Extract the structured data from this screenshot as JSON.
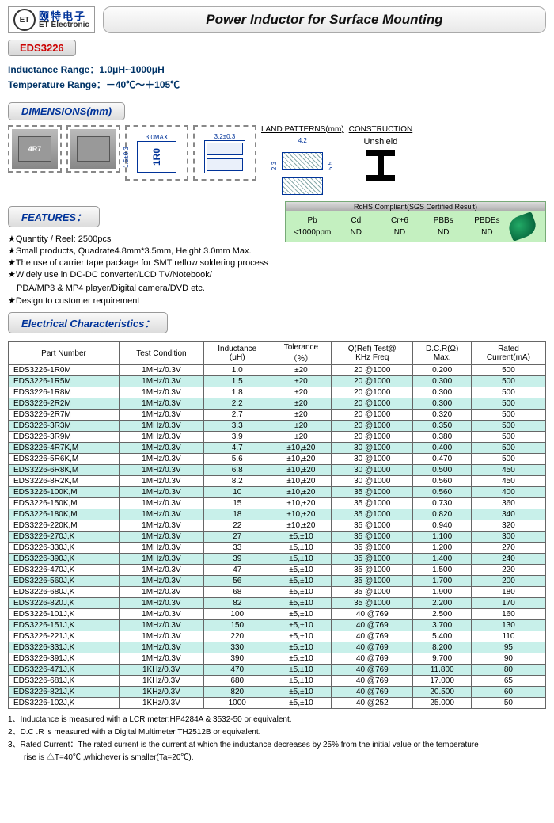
{
  "logo": {
    "cn": "颐特电子",
    "en": "ET Electronic",
    "glyph": "ET"
  },
  "title": "Power Inductor for Surface Mounting",
  "model": "EDS3226",
  "specs": {
    "inductance_label": "Inductance Range：",
    "inductance_value": "1.0μH~1000μH",
    "temperature_label": "Temperature Range：",
    "temperature_value": "－40℃～＋105℃"
  },
  "sections": {
    "dimensions": "DIMENSIONS(mm)",
    "features": "FEATURES：",
    "electrical": "Electrical Characteristics："
  },
  "dimensions": {
    "photo_label": "4R7",
    "pkg_text": "1R0",
    "width_top": "3.0MAX",
    "height_side": "1.5±0.3",
    "fp_width": "3.2±0.3",
    "land_title": "LAND PATTERNS(mm)",
    "land_w": "4.2",
    "land_h1": "2.3",
    "land_h2": "5.5",
    "constr_title": "CONSTRUCTION",
    "constr_value": "Unshield"
  },
  "features": [
    "★Quantity / Reel: 2500pcs",
    "★Small products, Quadrate4.8mm*3.5mm, Height 3.0mm Max.",
    "★The use of carrier tape package for SMT reflow soldering process",
    "★Widely use in DC-DC converter/LCD TV/Notebook/",
    "　PDA/MP3 & MP4 player/Digital camera/DVD etc.",
    "★Design to customer requirement"
  ],
  "rohs": {
    "title": "RoHS Compliant(SGS Certified Result)",
    "headers": [
      "Pb",
      "Cd",
      "Cr+6",
      "PBBs",
      "PBDEs"
    ],
    "values": [
      "<1000ppm",
      "ND",
      "ND",
      "ND",
      "ND"
    ]
  },
  "table": {
    "columns": [
      "Part Number",
      "Test Condition",
      "Inductance\n(μH)",
      "Tolerance\n（％）",
      "Q(Ref) Test@\nKHz Freq",
      "D.C.R(Ω)\nMax.",
      "Rated\nCurrent(mA)"
    ],
    "row_alt_color": "#c8f0ea",
    "rows": [
      [
        "EDS3226-1R0M",
        "1MHz/0.3V",
        "1.0",
        "±20",
        "20  @1000",
        "0.200",
        "500"
      ],
      [
        "EDS3226-1R5M",
        "1MHz/0.3V",
        "1.5",
        "±20",
        "20  @1000",
        "0.300",
        "500"
      ],
      [
        "EDS3226-1R8M",
        "1MHz/0.3V",
        "1.8",
        "±20",
        "20  @1000",
        "0.300",
        "500"
      ],
      [
        "EDS3226-2R2M",
        "1MHz/0.3V",
        "2.2",
        "±20",
        "20  @1000",
        "0.300",
        "500"
      ],
      [
        "EDS3226-2R7M",
        "1MHz/0.3V",
        "2.7",
        "±20",
        "20  @1000",
        "0.320",
        "500"
      ],
      [
        "EDS3226-3R3M",
        "1MHz/0.3V",
        "3.3",
        "±20",
        "20  @1000",
        "0.350",
        "500"
      ],
      [
        "EDS3226-3R9M",
        "1MHz/0.3V",
        "3.9",
        "±20",
        "20  @1000",
        "0.380",
        "500"
      ],
      [
        "EDS3226-4R7K,M",
        "1MHz/0.3V",
        "4.7",
        "±10,±20",
        "30  @1000",
        "0.400",
        "500"
      ],
      [
        "EDS3226-5R6K,M",
        "1MHz/0.3V",
        "5.6",
        "±10,±20",
        "30  @1000",
        "0.470",
        "500"
      ],
      [
        "EDS3226-6R8K,M",
        "1MHz/0.3V",
        "6.8",
        "±10,±20",
        "30  @1000",
        "0.500",
        "450"
      ],
      [
        "EDS3226-8R2K,M",
        "1MHz/0.3V",
        "8.2",
        "±10,±20",
        "30  @1000",
        "0.560",
        "450"
      ],
      [
        "EDS3226-100K,M",
        "1MHz/0.3V",
        "10",
        "±10,±20",
        "35  @1000",
        "0.560",
        "400"
      ],
      [
        "EDS3226-150K,M",
        "1MHz/0.3V",
        "15",
        "±10,±20",
        "35  @1000",
        "0.730",
        "360"
      ],
      [
        "EDS3226-180K,M",
        "1MHz/0.3V",
        "18",
        "±10,±20",
        "35  @1000",
        "0.820",
        "340"
      ],
      [
        "EDS3226-220K,M",
        "1MHz/0.3V",
        "22",
        "±10,±20",
        "35  @1000",
        "0.940",
        "320"
      ],
      [
        "EDS3226-270J,K",
        "1MHz/0.3V",
        "27",
        "±5,±10",
        "35  @1000",
        "1.100",
        "300"
      ],
      [
        "EDS3226-330J,K",
        "1MHz/0.3V",
        "33",
        "±5,±10",
        "35  @1000",
        "1.200",
        "270"
      ],
      [
        "EDS3226-390J,K",
        "1MHz/0.3V",
        "39",
        "±5,±10",
        "35  @1000",
        "1.400",
        "240"
      ],
      [
        "EDS3226-470J,K",
        "1MHz/0.3V",
        "47",
        "±5,±10",
        "35  @1000",
        "1.500",
        "220"
      ],
      [
        "EDS3226-560J,K",
        "1MHz/0.3V",
        "56",
        "±5,±10",
        "35  @1000",
        "1.700",
        "200"
      ],
      [
        "EDS3226-680J,K",
        "1MHz/0.3V",
        "68",
        "±5,±10",
        "35  @1000",
        "1.900",
        "180"
      ],
      [
        "EDS3226-820J,K",
        "1MHz/0.3V",
        "82",
        "±5,±10",
        "35  @1000",
        "2.200",
        "170"
      ],
      [
        "EDS3226-101J,K",
        "1MHz/0.3V",
        "100",
        "±5,±10",
        "40  @769",
        "2.500",
        "160"
      ],
      [
        "EDS3226-151J,K",
        "1MHz/0.3V",
        "150",
        "±5,±10",
        "40  @769",
        "3.700",
        "130"
      ],
      [
        "EDS3226-221J,K",
        "1MHz/0.3V",
        "220",
        "±5,±10",
        "40  @769",
        "5.400",
        "110"
      ],
      [
        "EDS3226-331J,K",
        "1MHz/0.3V",
        "330",
        "±5,±10",
        "40  @769",
        "8.200",
        "95"
      ],
      [
        "EDS3226-391J,K",
        "1MHz/0.3V",
        "390",
        "±5,±10",
        "40  @769",
        "9.700",
        "90"
      ],
      [
        "EDS3226-471J,K",
        "1KHz/0.3V",
        "470",
        "±5,±10",
        "40  @769",
        "11.800",
        "80"
      ],
      [
        "EDS3226-681J,K",
        "1KHz/0.3V",
        "680",
        "±5,±10",
        "40  @769",
        "17.000",
        "65"
      ],
      [
        "EDS3226-821J,K",
        "1KHz/0.3V",
        "820",
        "±5,±10",
        "40  @769",
        "20.500",
        "60"
      ],
      [
        "EDS3226-102J,K",
        "1KHz/0.3V",
        "1000",
        "±5,±10",
        "40  @252",
        "25.000",
        "50"
      ]
    ]
  },
  "notes": [
    "1、Inductance is measured with a LCR meter:HP4284A & 3532-50 or equivalent.",
    "2、D.C .R is measured with a Digital Multimeter TH2512B or equivalent.",
    "3、Rated Current：The rated current is the current at which the inductance decreases by 25% from the initial value or the temperature",
    "　　rise is △T=40℃ ,whichever is smaller(Ta=20℃)."
  ]
}
